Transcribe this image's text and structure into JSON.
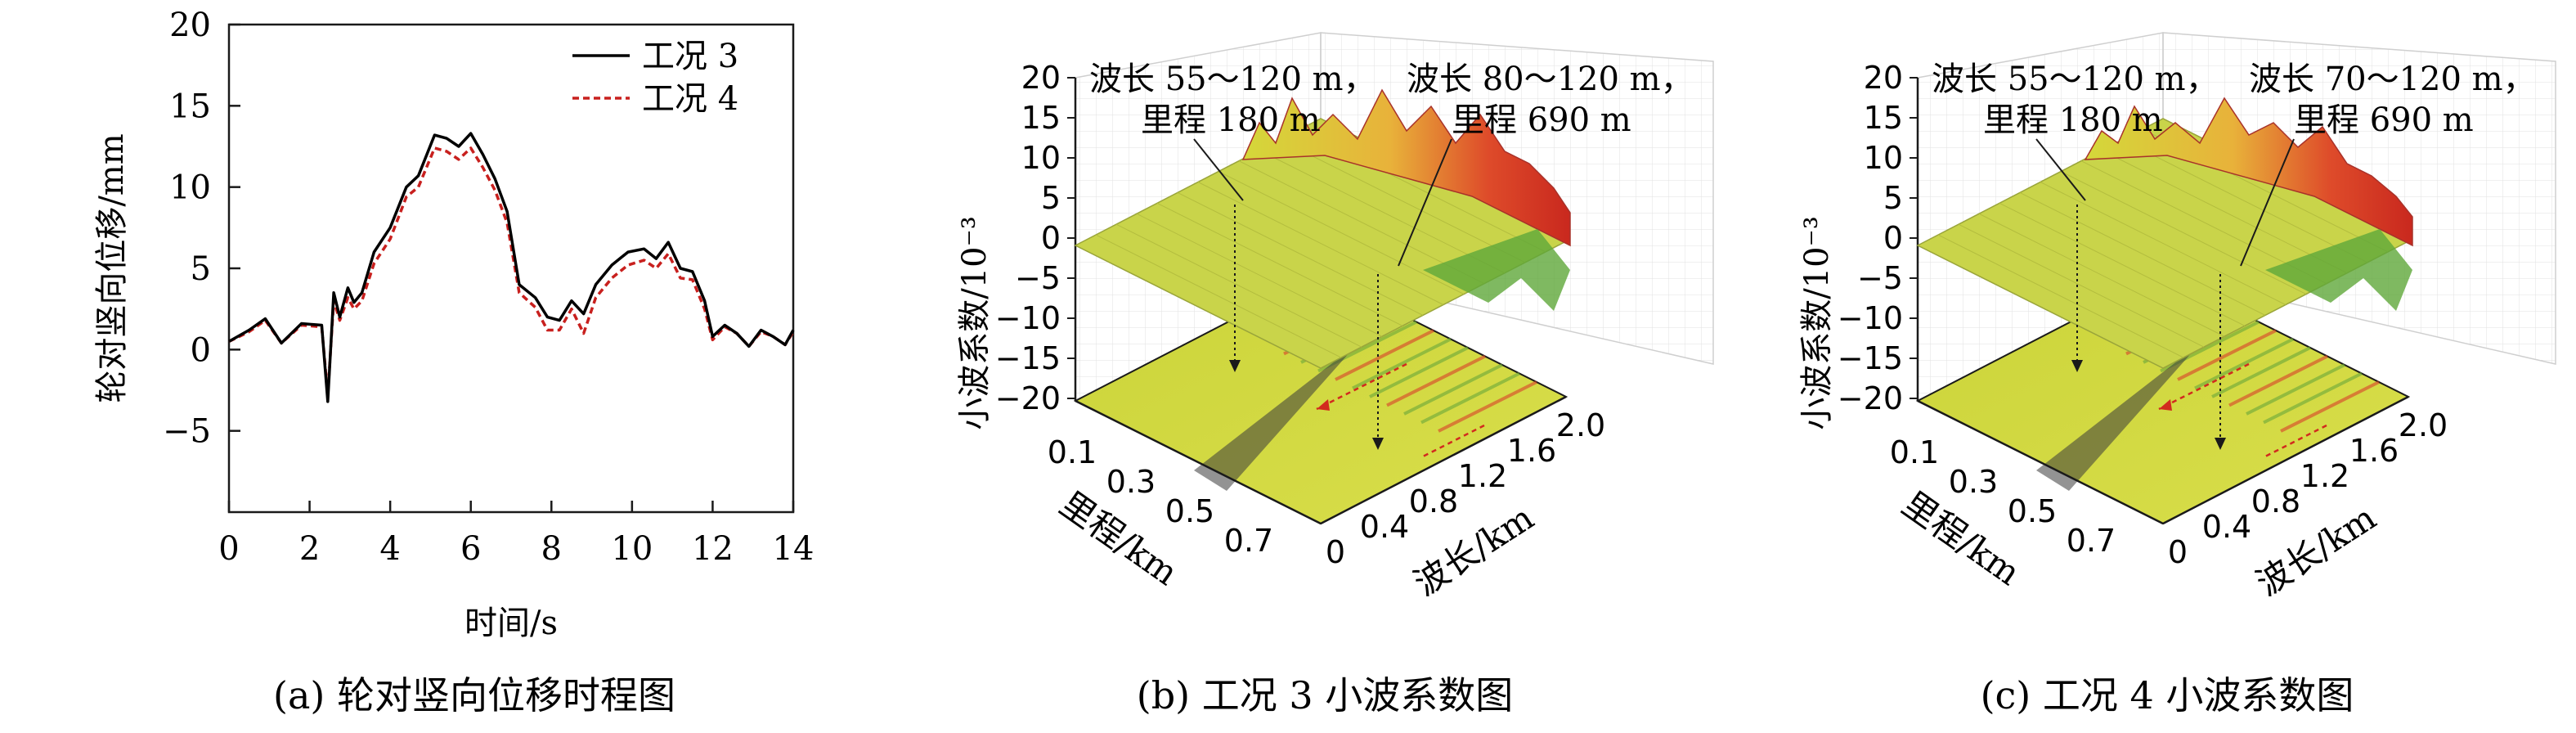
{
  "chart_data": [
    {
      "type": "line",
      "xlabel": "时间/s",
      "ylabel": "轮对竖向位移/mm",
      "xlim": [
        0,
        14
      ],
      "ylim": [
        -10,
        20
      ],
      "xticks": [
        "0",
        "2",
        "4",
        "6",
        "8",
        "10",
        "12",
        "14"
      ],
      "yticks": [
        "−5",
        "0",
        "5",
        "10",
        "15",
        "20"
      ],
      "legend_position": "top-right",
      "series": [
        {
          "name": "工况 3",
          "color": "#000000",
          "style": "solid",
          "x": [
            0,
            0.5,
            0.9,
            1.3,
            1.8,
            2.3,
            2.45,
            2.6,
            2.75,
            2.95,
            3.1,
            3.3,
            3.6,
            4.0,
            4.4,
            4.7,
            5.1,
            5.4,
            5.7,
            6.0,
            6.3,
            6.6,
            6.9,
            7.2,
            7.6,
            7.9,
            8.2,
            8.5,
            8.8,
            9.1,
            9.5,
            9.9,
            10.3,
            10.6,
            10.9,
            11.2,
            11.5,
            11.8,
            12.0,
            12.3,
            12.6,
            12.9,
            13.2,
            13.5,
            13.8,
            14.0
          ],
          "y": [
            0.5,
            1.2,
            1.9,
            0.4,
            1.6,
            1.5,
            -3.2,
            3.5,
            2.0,
            3.8,
            2.9,
            3.5,
            6.0,
            7.5,
            10.0,
            10.7,
            13.2,
            13.0,
            12.5,
            13.3,
            12.0,
            10.5,
            8.5,
            4.0,
            3.2,
            2.0,
            1.8,
            3.0,
            2.2,
            4.0,
            5.2,
            6.0,
            6.2,
            5.6,
            6.6,
            5.0,
            4.8,
            3.0,
            0.8,
            1.5,
            1.0,
            0.2,
            1.2,
            0.8,
            0.3,
            1.2
          ]
        },
        {
          "name": "工况 4",
          "color": "#c8201e",
          "style": "dashed",
          "x": [
            0,
            0.5,
            0.9,
            1.3,
            1.8,
            2.3,
            2.45,
            2.6,
            2.75,
            2.95,
            3.1,
            3.3,
            3.6,
            4.0,
            4.4,
            4.7,
            5.1,
            5.4,
            5.7,
            6.0,
            6.3,
            6.6,
            6.9,
            7.2,
            7.6,
            7.9,
            8.2,
            8.5,
            8.8,
            9.1,
            9.5,
            9.9,
            10.3,
            10.6,
            10.9,
            11.2,
            11.5,
            11.8,
            12.0,
            12.3,
            12.6,
            12.9,
            13.2,
            13.5,
            13.8,
            14.0
          ],
          "y": [
            0.5,
            1.1,
            1.8,
            0.4,
            1.5,
            1.4,
            -2.8,
            3.0,
            1.8,
            3.2,
            2.5,
            3.0,
            5.3,
            6.8,
            9.4,
            10.0,
            12.4,
            12.2,
            11.7,
            12.4,
            11.2,
            9.8,
            7.8,
            3.5,
            2.6,
            1.2,
            1.2,
            2.5,
            1.0,
            3.2,
            4.4,
            5.2,
            5.5,
            5.0,
            5.9,
            4.4,
            4.3,
            2.5,
            0.6,
            1.4,
            1.0,
            0.2,
            1.1,
            0.8,
            0.3,
            1.1
          ]
        }
      ],
      "caption": "(a) 轮对竖向位移时程图"
    },
    {
      "type": "surface3d",
      "zlabel": "小波系数/10⁻³",
      "xlabel": "里程/km",
      "ylabel": "波长/km",
      "zticks": [
        "20",
        "15",
        "10",
        "5",
        "0",
        "−5",
        "−10",
        "−15",
        "−20"
      ],
      "mileage_ticks": [
        "0.1",
        "0.3",
        "0.5",
        "0.7"
      ],
      "wavelength_ticks": [
        "0",
        "0.4",
        "0.8",
        "1.2",
        "1.6",
        "2.0"
      ],
      "annotations": [
        {
          "line1": "波长 55～120 m，",
          "line2": "里程 180 m"
        },
        {
          "line1": "波长 80～120 m，",
          "line2": "里程 690 m"
        }
      ],
      "caption": "(b) 工况 3 小波系数图"
    },
    {
      "type": "surface3d",
      "zlabel": "小波系数/10⁻³",
      "xlabel": "里程/km",
      "ylabel": "波长/km",
      "zticks": [
        "20",
        "15",
        "10",
        "5",
        "0",
        "−5",
        "−10",
        "−15",
        "−20"
      ],
      "mileage_ticks": [
        "0.1",
        "0.3",
        "0.5",
        "0.7"
      ],
      "wavelength_ticks": [
        "0",
        "0.4",
        "0.8",
        "1.2",
        "1.6",
        "2.0"
      ],
      "annotations": [
        {
          "line1": "波长 55～120 m，",
          "line2": "里程 180 m"
        },
        {
          "line1": "波长 70～120 m，",
          "line2": "里程 690 m"
        }
      ],
      "caption": "(c) 工况 4 小波系数图"
    }
  ]
}
